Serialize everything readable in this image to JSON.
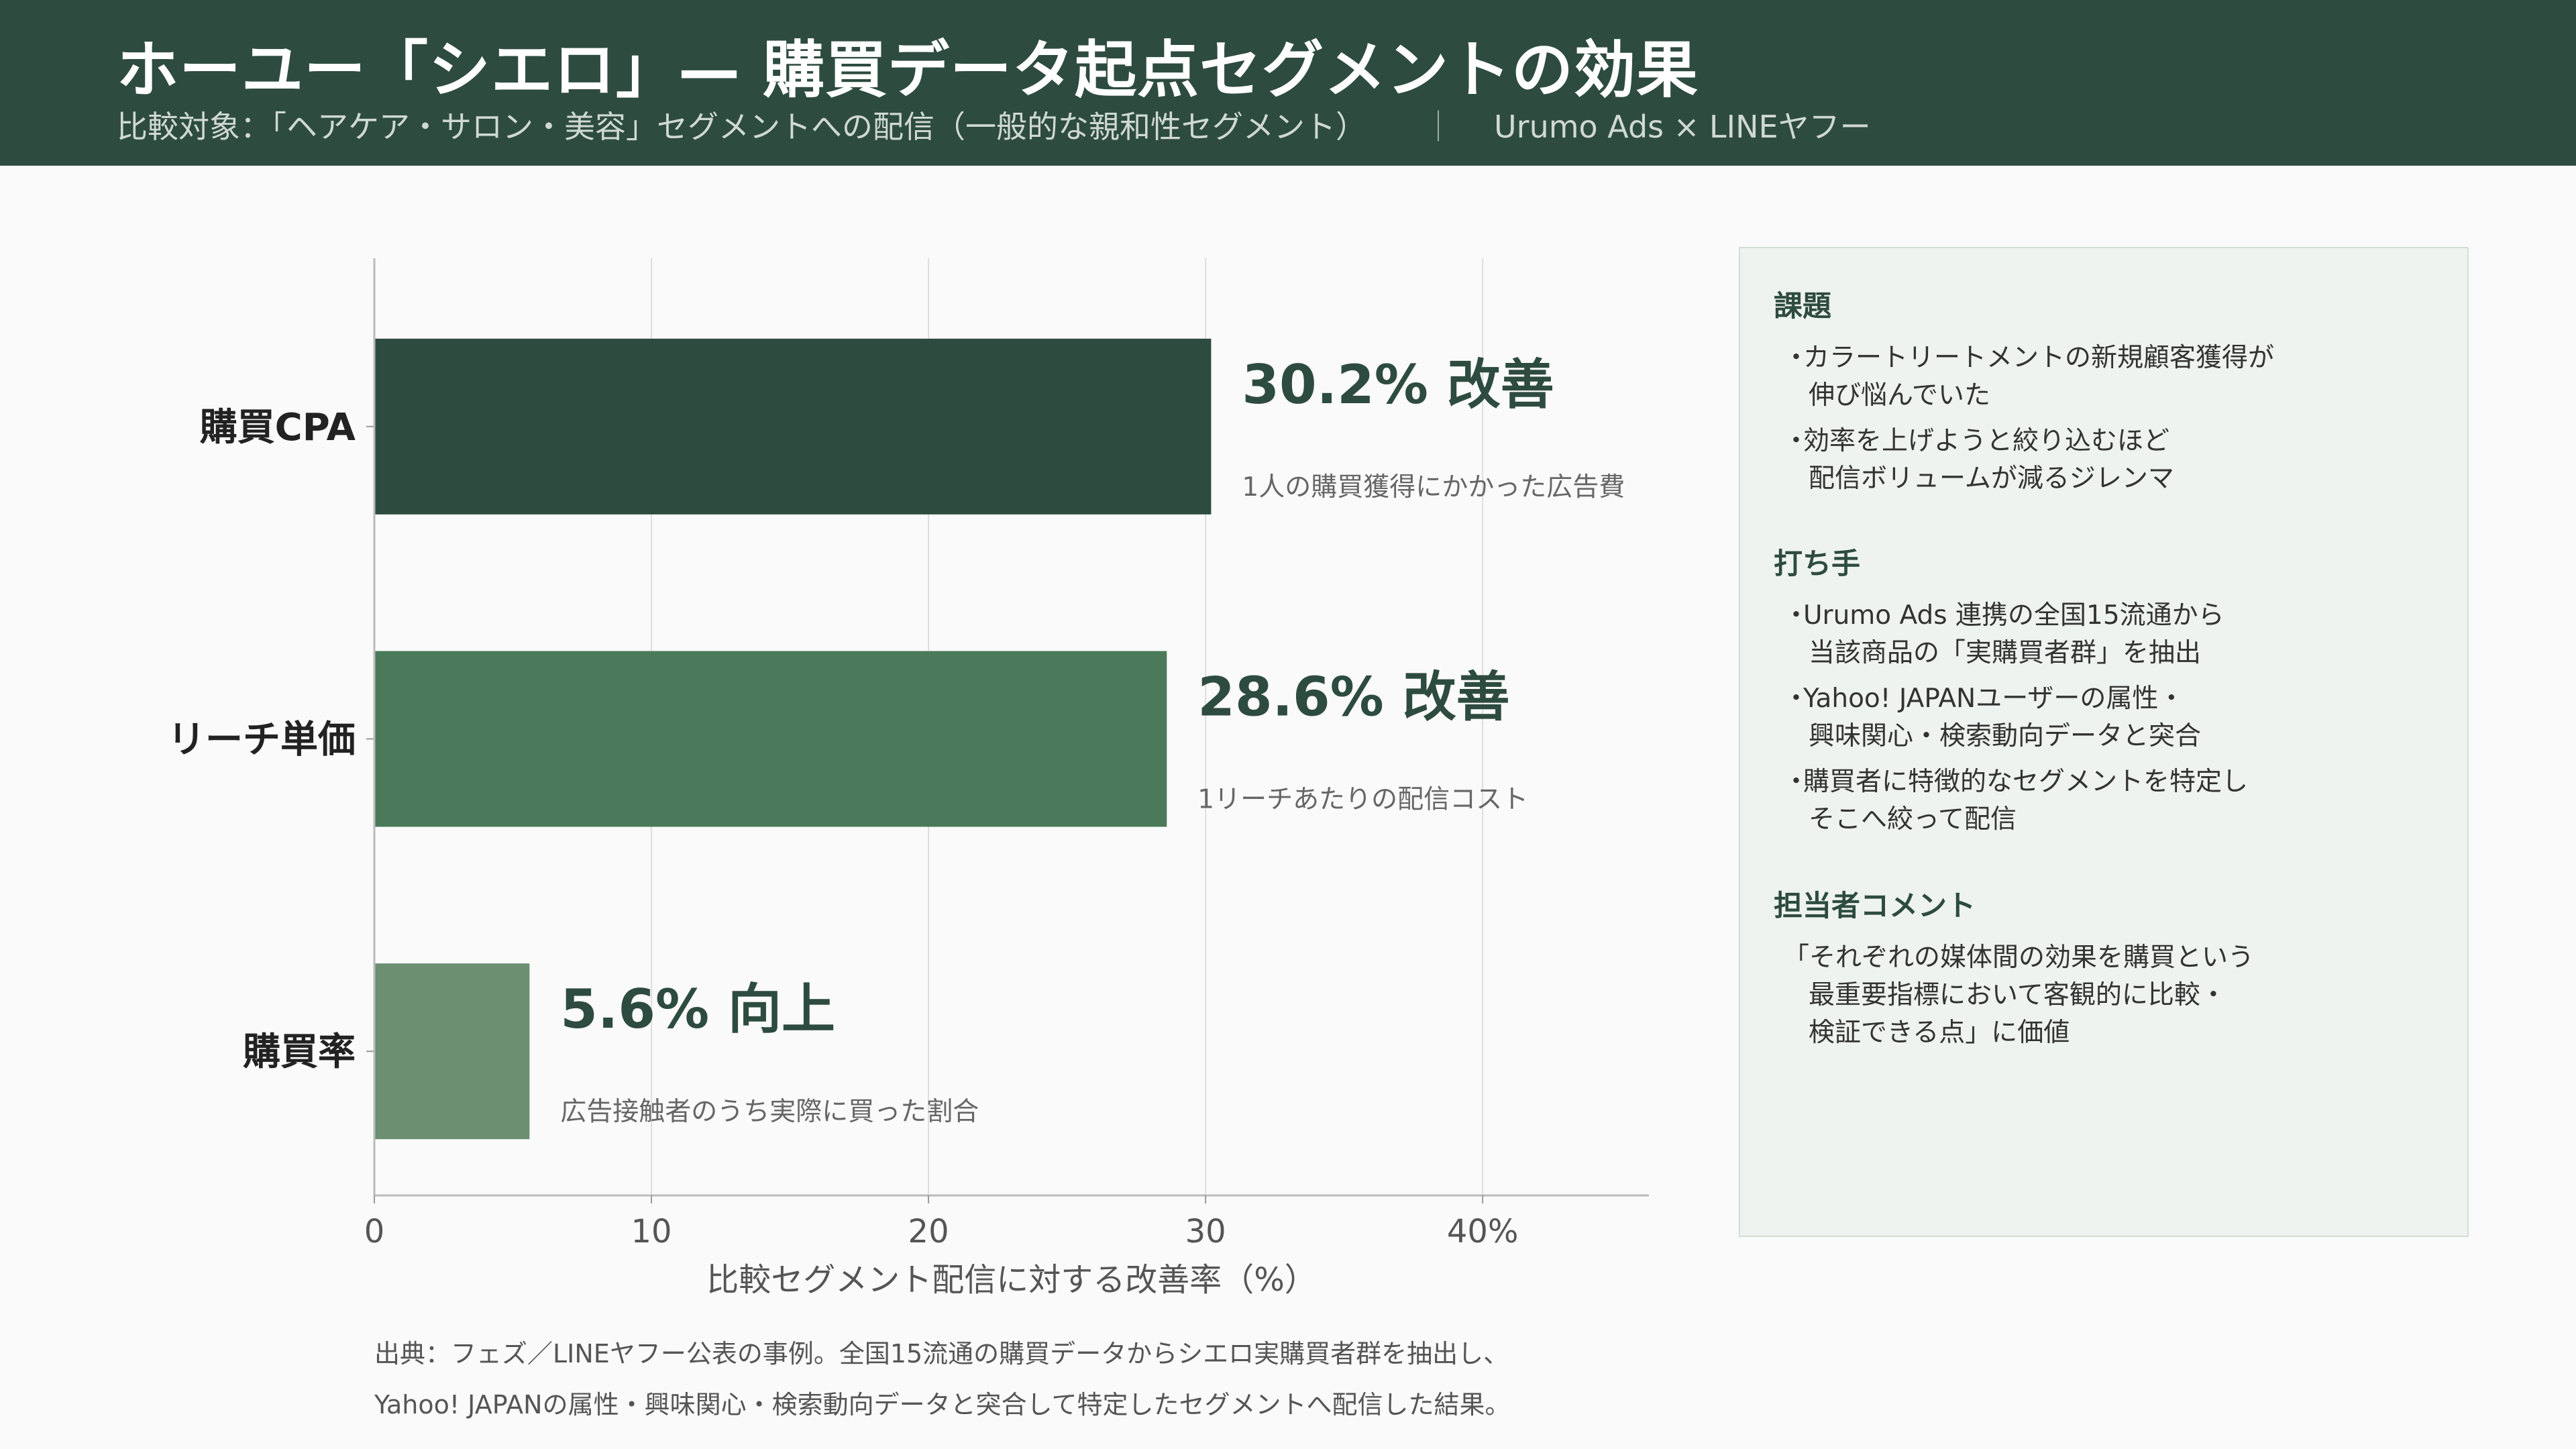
{
  "header": {
    "title": "ホーユー「シエロ」— 購買データ起点セグメントの効果",
    "subtitle_left": "比較対象：「ヘアケア・サロン・美容」セグメントへの配信（一般的な親和性セグメント）",
    "subtitle_sep": "｜",
    "subtitle_right": "Urumo Ads × LINEヤフー"
  },
  "chart_data": {
    "type": "bar",
    "orientation": "horizontal",
    "categories": [
      "購買CPA",
      "リーチ単価",
      "購買率"
    ],
    "values": [
      30.2,
      28.6,
      5.6
    ],
    "bar_colors": [
      "#2e4b3f",
      "#4a7a59",
      "#6b8f70"
    ],
    "value_labels": [
      "30.2% 改善",
      "28.6% 改善",
      "5.6% 向上"
    ],
    "descriptions": [
      "1人の購買獲得にかかった広告費",
      "1リーチあたりの配信コスト",
      "広告接触者のうち実際に買った割合"
    ],
    "x_ticks": [
      0,
      10,
      20,
      30,
      40
    ],
    "x_tick_labels": [
      "0",
      "10",
      "20",
      "30",
      "40%"
    ],
    "xlim": [
      0,
      46
    ],
    "xlabel": "比較セグメント配信に対する改善率（%）",
    "grid": "vertical"
  },
  "source": {
    "line1": "出典：フェズ／LINEヤフー公表の事例。全国15流通の購買データからシエロ実購買者群を抽出し、",
    "line2": "Yahoo! JAPANの属性・興味関心・検索動向データと突合して特定したセグメントへ配信した結果。"
  },
  "panel": {
    "issue": {
      "title": "課題",
      "bullets": [
        [
          "カラートリートメントの新規顧客獲得が",
          "伸び悩んでいた"
        ],
        [
          "効率を上げようと絞り込むほど",
          "配信ボリュームが減るジレンマ"
        ]
      ]
    },
    "action": {
      "title": "打ち手",
      "bullets": [
        [
          "Urumo Ads 連携の全国15流通から",
          "当該商品の「実購買者群」を抽出"
        ],
        [
          "Yahoo! JAPANユーザーの属性・",
          "興味関心・検索動向データと突合"
        ],
        [
          "購買者に特徴的なセグメントを特定し",
          "そこへ絞って配信"
        ]
      ]
    },
    "comment": {
      "title": "担当者コメント",
      "lines": [
        "「それぞれの媒体間の効果を購買という",
        "最重要指標において客観的に比較・",
        "検証できる点」に価値"
      ]
    }
  }
}
